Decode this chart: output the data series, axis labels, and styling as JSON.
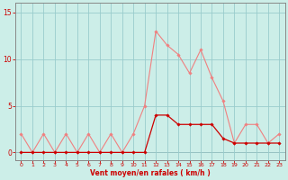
{
  "x": [
    0,
    1,
    2,
    3,
    4,
    5,
    6,
    7,
    8,
    9,
    10,
    11,
    12,
    13,
    14,
    15,
    16,
    17,
    18,
    19,
    20,
    21,
    22,
    23
  ],
  "y_rafales": [
    2,
    0,
    2,
    0,
    2,
    0,
    2,
    0,
    2,
    0,
    2,
    5,
    13,
    11.5,
    10.5,
    8.5,
    11,
    8,
    5.5,
    1,
    3,
    3,
    1,
    2
  ],
  "y_moyen": [
    0,
    0,
    0,
    0,
    0,
    0,
    0,
    0,
    0,
    0,
    0,
    0,
    4,
    4,
    3,
    3,
    3,
    3,
    1.5,
    1,
    1,
    1,
    1,
    1
  ],
  "color_rafales": "#f08080",
  "color_moyen": "#cc0000",
  "bg_color": "#cceee8",
  "grid_color": "#99cccc",
  "xlabel": "Vent moyen/en rafales ( km/h )",
  "xlabel_color": "#cc0000",
  "yticks": [
    0,
    5,
    10,
    15
  ],
  "ylim": [
    -0.8,
    16.0
  ],
  "xlim": [
    -0.5,
    23.5
  ],
  "tick_color": "#cc0000",
  "spine_color": "#888888",
  "figsize": [
    3.2,
    2.0
  ],
  "dpi": 100
}
